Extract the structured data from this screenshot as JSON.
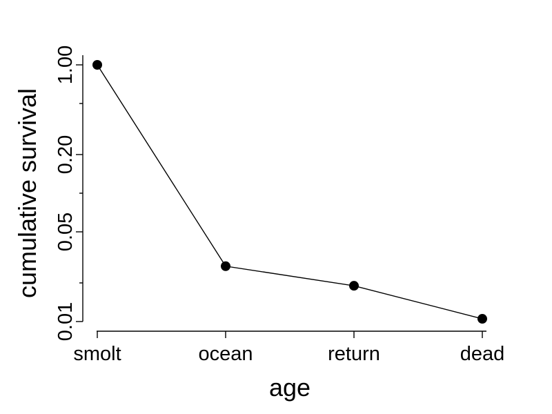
{
  "chart_data": {
    "type": "line",
    "title": "",
    "xlabel": "age",
    "ylabel": "cumulative survival",
    "y_scale": "log",
    "categories": [
      "smolt",
      "ocean",
      "return",
      "dead"
    ],
    "series": [
      {
        "values": [
          1.0,
          0.027,
          0.019,
          0.0105
        ]
      }
    ],
    "y_ticks": [
      {
        "value": 1.0,
        "label": "1.00"
      },
      {
        "value": 0.5,
        "label": ""
      },
      {
        "value": 0.2,
        "label": "0.20"
      },
      {
        "value": 0.1,
        "label": ""
      },
      {
        "value": 0.05,
        "label": "0.05"
      },
      {
        "value": 0.02,
        "label": ""
      },
      {
        "value": 0.01,
        "label": "0.01"
      }
    ],
    "ylim": [
      0.0087,
      1.1
    ],
    "grid": false,
    "legend": "none",
    "colors": {
      "series": "#000000",
      "axis": "#000000"
    }
  }
}
